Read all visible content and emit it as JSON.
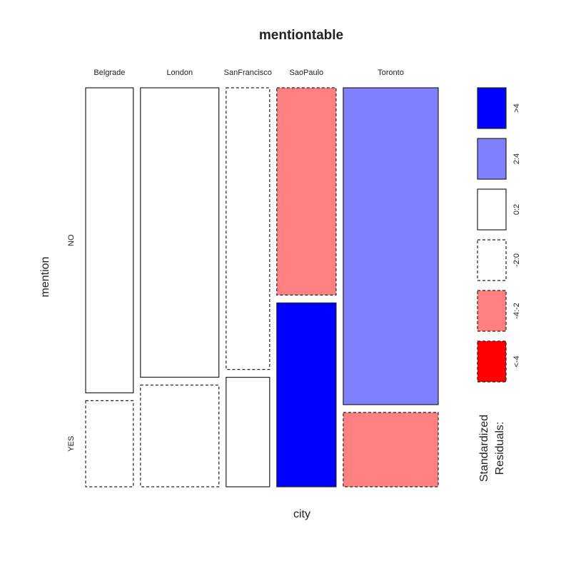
{
  "chart_data": {
    "type": "mosaic",
    "title": "mentiontable",
    "xlabel": "city",
    "ylabel": "mention",
    "categories": [
      "Belgrade",
      "London",
      "SanFrancisco",
      "SaoPaulo",
      "Toronto"
    ],
    "rows": [
      "NO",
      "YES"
    ],
    "cells": [
      {
        "city": "Belgrade",
        "mention": "NO",
        "proportion": 0.78,
        "residual_class": "0:2"
      },
      {
        "city": "Belgrade",
        "mention": "YES",
        "proportion": 0.22,
        "residual_class": "-2:0"
      },
      {
        "city": "London",
        "mention": "NO",
        "proportion": 0.74,
        "residual_class": "0:2"
      },
      {
        "city": "London",
        "mention": "YES",
        "proportion": 0.26,
        "residual_class": "-2:0"
      },
      {
        "city": "SanFrancisco",
        "mention": "NO",
        "proportion": 0.72,
        "residual_class": "-2:0"
      },
      {
        "city": "SanFrancisco",
        "mention": "YES",
        "proportion": 0.28,
        "residual_class": "0:2"
      },
      {
        "city": "SaoPaulo",
        "mention": "NO",
        "proportion": 0.53,
        "residual_class": "-4:-2"
      },
      {
        "city": "SaoPaulo",
        "mention": "YES",
        "proportion": 0.47,
        "residual_class": ">4"
      },
      {
        "city": "Toronto",
        "mention": "NO",
        "proportion": 0.81,
        "residual_class": "2:4"
      },
      {
        "city": "Toronto",
        "mention": "YES",
        "proportion": 0.19,
        "residual_class": "-4:-2"
      }
    ],
    "column_widths": [
      0.127,
      0.209,
      0.116,
      0.158,
      0.253
    ],
    "legend": {
      "title_lines": [
        "Standardized",
        "Residuals:"
      ],
      "entries": [
        {
          "label": ">4",
          "color": "#0000ff",
          "dashed": false
        },
        {
          "label": "2:4",
          "color": "#8080ff",
          "dashed": false
        },
        {
          "label": "0:2",
          "color": "#ffffff",
          "dashed": false
        },
        {
          "label": "-2:0",
          "color": "#ffffff",
          "dashed": true
        },
        {
          "label": "-4:-2",
          "color": "#ff8080",
          "dashed": true
        },
        {
          "label": "<-4",
          "color": "#ff0000",
          "dashed": true
        }
      ]
    }
  }
}
